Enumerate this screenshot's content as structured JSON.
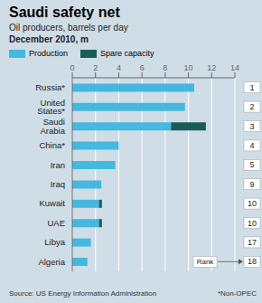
{
  "chart_data": {
    "type": "bar",
    "orientation": "horizontal",
    "stacked": true,
    "title": "Saudi safety net",
    "subtitle": [
      "Oil producers, barrels per day",
      "December 2010, m"
    ],
    "categories": [
      "Russia*",
      "United States*",
      "Saudi Arabia",
      "China*",
      "Iran",
      "Iraq",
      "Kuwait",
      "UAE",
      "Libya",
      "Algeria"
    ],
    "series": [
      {
        "name": "Production",
        "color": "#45b8e0",
        "values": [
          10.5,
          9.7,
          8.5,
          4.0,
          3.7,
          2.5,
          2.3,
          2.3,
          1.6,
          1.3
        ]
      },
      {
        "name": "Spare capacity",
        "color": "#1a5c5a",
        "values": [
          0,
          0,
          3.0,
          0,
          0,
          0,
          0.25,
          0.25,
          0,
          0
        ]
      }
    ],
    "ranks": [
      1,
      2,
      3,
      4,
      5,
      9,
      10,
      10,
      17,
      18
    ],
    "rank_label": "Rank",
    "xlim": [
      0,
      14
    ],
    "xticks": [
      0,
      2,
      4,
      6,
      8,
      10,
      12,
      14
    ],
    "grid": true,
    "legend": "top",
    "background_color": "#cfdde6",
    "source": "Source: US Energy Information Administration",
    "footnote": "*Non-OPEC"
  }
}
